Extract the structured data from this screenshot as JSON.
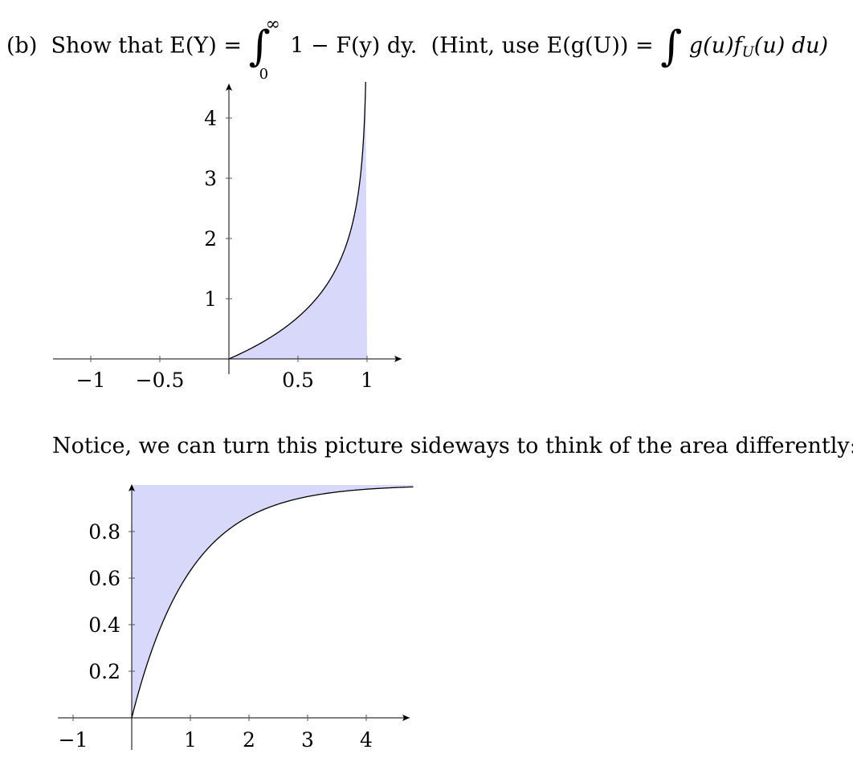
{
  "problem": {
    "label": "(b)",
    "show_text": "Show that",
    "expect_lhs": "E(Y) =",
    "integral_upper": "∞",
    "integral_lower": "0",
    "integrand": "1 − F(y) dy.",
    "hint_open": "(Hint, use",
    "hint_expr": "E(g(U)) =",
    "hint_integrand_left": "g(u)f",
    "hint_subscript": "U",
    "hint_integrand_right": "(u) du)"
  },
  "notice_text": "Notice, we can turn this picture sideways to think of the area differently:",
  "chart_data": [
    {
      "type": "area",
      "title": "",
      "xlabel": "",
      "ylabel": "",
      "xlim": [
        -1.28,
        1.25
      ],
      "ylim": [
        -0.2,
        4.6
      ],
      "curve": "y = -ln(1 - x)",
      "x": [
        0,
        0.1,
        0.2,
        0.3,
        0.4,
        0.5,
        0.6,
        0.7,
        0.8,
        0.9,
        0.95,
        0.99
      ],
      "y": [
        0,
        0.105,
        0.223,
        0.357,
        0.511,
        0.693,
        0.916,
        1.204,
        1.609,
        2.303,
        2.996,
        4.605
      ],
      "shaded_region": "between curve and x-axis for 0 ≤ x ≤ 1",
      "fill_color": "#d8d8fb",
      "x_ticks": [
        -1,
        -0.5,
        0.5,
        1
      ],
      "x_tick_labels": [
        "−1",
        "−0.5",
        "0.5",
        "1"
      ],
      "y_ticks": [
        1,
        2,
        3,
        4
      ],
      "y_tick_labels": [
        "1",
        "2",
        "3",
        "4"
      ],
      "grid": false
    },
    {
      "type": "area",
      "title": "",
      "xlabel": "",
      "ylabel": "",
      "xlim": [
        -1.25,
        4.8
      ],
      "ylim": [
        -0.07,
        1.0
      ],
      "curve": "y = 1 - e^(-x)",
      "x": [
        0,
        0.25,
        0.5,
        1,
        1.5,
        2,
        2.5,
        3,
        3.5,
        4,
        4.75
      ],
      "y": [
        0,
        0.221,
        0.393,
        0.632,
        0.777,
        0.865,
        0.918,
        0.95,
        0.97,
        0.982,
        0.991
      ],
      "shaded_region": "between curve and y = 1, to the right of the y-axis",
      "fill_color": "#d8d8fb",
      "x_ticks": [
        -1,
        1,
        2,
        3,
        4
      ],
      "x_tick_labels": [
        "−1",
        "1",
        "2",
        "3",
        "4"
      ],
      "y_ticks": [
        0.2,
        0.4,
        0.6,
        0.8
      ],
      "y_tick_labels": [
        "0.2",
        "0.4",
        "0.6",
        "0.8"
      ],
      "grid": false
    }
  ]
}
